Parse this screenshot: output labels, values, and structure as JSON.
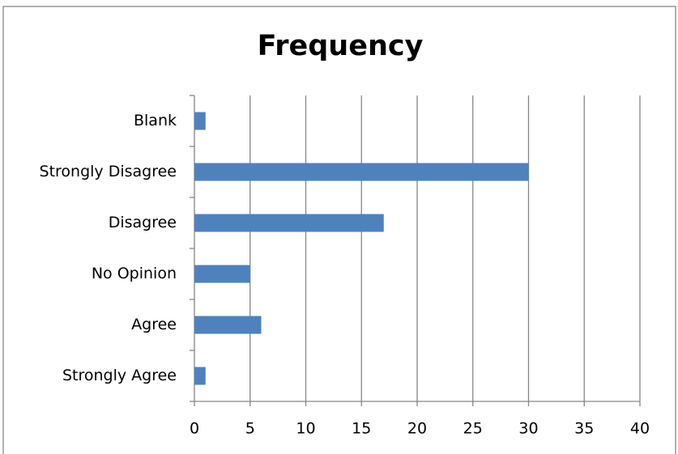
{
  "chart_data": {
    "type": "barh",
    "title": "Frequency",
    "categories": [
      "Blank",
      "Strongly Disagree",
      "Disagree",
      "No Opinion",
      "Agree",
      "Strongly Agree"
    ],
    "values": [
      1,
      30,
      17,
      5,
      6,
      1
    ],
    "color": "#4f81bd",
    "xlim": [
      0,
      40
    ],
    "xticks": [
      0,
      5,
      10,
      15,
      20,
      25,
      30,
      35,
      40
    ],
    "grid": true
  }
}
